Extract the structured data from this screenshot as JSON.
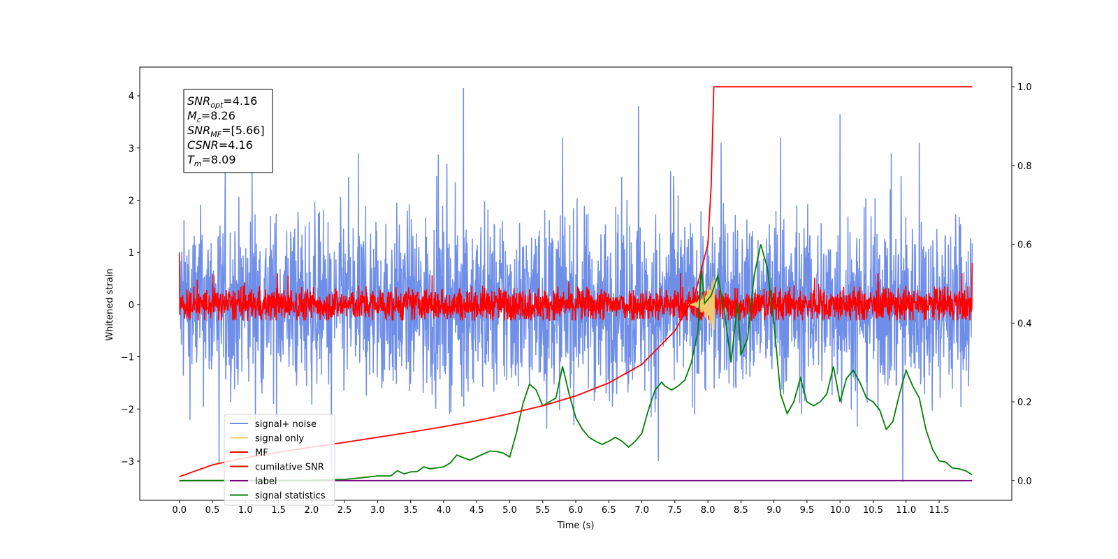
{
  "chart_data": {
    "type": "line",
    "xlabel": "Time (s)",
    "ylabel": "Whitened strain",
    "xlim": [
      -0.6,
      12.6
    ],
    "ylim": [
      -3.75,
      4.55
    ],
    "y2lim": [
      -0.05,
      1.05
    ],
    "x_ticks": [
      0.0,
      0.5,
      1.0,
      1.5,
      2.0,
      2.5,
      3.0,
      3.5,
      4.0,
      4.5,
      5.0,
      5.5,
      6.0,
      6.5,
      7.0,
      7.5,
      8.0,
      8.5,
      9.0,
      9.5,
      10.0,
      10.5,
      11.0,
      11.5
    ],
    "x_tick_labels": [
      "0.0",
      "0.5",
      "1.0",
      "1.5",
      "2.0",
      "2.5",
      "3.0",
      "3.5",
      "4.0",
      "4.5",
      "5.0",
      "5.5",
      "6.0",
      "6.5",
      "7.0",
      "7.5",
      "8.0",
      "8.5",
      "9.0",
      "9.5",
      "10.0",
      "10.5",
      "11.0",
      "11.5"
    ],
    "y_ticks": [
      -3,
      -2,
      -1,
      0,
      1,
      2,
      3,
      4
    ],
    "y_tick_labels": [
      "−3",
      "−2",
      "−1",
      "0",
      "1",
      "2",
      "3",
      "4"
    ],
    "y2_ticks": [
      0.0,
      0.2,
      0.4,
      0.6,
      0.8,
      1.0
    ],
    "y2_tick_labels": [
      "0.0",
      "0.2",
      "0.4",
      "0.6",
      "0.8",
      "1.0"
    ],
    "annotation": {
      "lines": [
        {
          "base": "SNR",
          "sub": "opt",
          "value": "=4.16"
        },
        {
          "base": "M",
          "sub": "c",
          "value": "=8.26"
        },
        {
          "base": "SNR",
          "sub": "MF",
          "value": "=[5.66]"
        },
        {
          "base": "CSNR",
          "sub": "",
          "value": "=4.16"
        },
        {
          "base": "T",
          "sub": "m",
          "value": "=8.09"
        }
      ]
    },
    "series": [
      {
        "name": "signal+ noise",
        "axis": "left",
        "color": "#6f8ee8",
        "description": "dense noisy strain, roughly symmetric about 0 with amplitude ~1.2, spikes to about +/-3",
        "t_range": [
          0.0,
          12.0
        ],
        "spikes": [
          {
            "x": 4.3,
            "y": 4.15
          },
          {
            "x": 6.95,
            "y": 3.8
          },
          {
            "x": 10.0,
            "y": 3.65
          },
          {
            "x": 1.1,
            "y": 2.7
          },
          {
            "x": 5.8,
            "y": 3.2
          },
          {
            "x": 8.2,
            "y": 3.1
          },
          {
            "x": 9.1,
            "y": 3.2
          },
          {
            "x": 11.2,
            "y": 3.1
          },
          {
            "x": 0.6,
            "y": -3.05
          },
          {
            "x": 10.95,
            "y": -3.4
          },
          {
            "x": 2.3,
            "y": -3.2
          },
          {
            "x": 7.25,
            "y": -3.0
          }
        ]
      },
      {
        "name": "signal only",
        "axis": "left",
        "color": "#f5c971",
        "t_range": [
          7.7,
          8.1
        ],
        "peak": 0.6
      },
      {
        "name": "MF",
        "axis": "left",
        "color": "#ff0000",
        "description": "matched filter output, noisy band about 0 with amplitude ~0.25, edge spikes at t=0 (+1.0) and t=12 (+0.8)",
        "t_range": [
          0.0,
          12.0
        ]
      },
      {
        "name": "cumilative SNR",
        "axis": "right",
        "color": "#ff0000",
        "points": [
          [
            0.0,
            0.01
          ],
          [
            0.5,
            0.04
          ],
          [
            1.0,
            0.058
          ],
          [
            1.5,
            0.072
          ],
          [
            2.0,
            0.085
          ],
          [
            2.5,
            0.097
          ],
          [
            3.0,
            0.11
          ],
          [
            3.5,
            0.123
          ],
          [
            4.0,
            0.137
          ],
          [
            4.5,
            0.152
          ],
          [
            5.0,
            0.17
          ],
          [
            5.5,
            0.19
          ],
          [
            6.0,
            0.215
          ],
          [
            6.5,
            0.248
          ],
          [
            7.0,
            0.295
          ],
          [
            7.5,
            0.38
          ],
          [
            7.8,
            0.47
          ],
          [
            8.0,
            0.6
          ],
          [
            8.05,
            0.75
          ],
          [
            8.09,
            1.0
          ],
          [
            12.0,
            1.0
          ]
        ]
      },
      {
        "name": "label",
        "axis": "right",
        "color": "#7b007b",
        "points": [
          [
            0.0,
            0.0
          ],
          [
            12.0,
            0.0
          ]
        ]
      },
      {
        "name": "signal statistics",
        "axis": "right",
        "color": "#008000",
        "points": [
          [
            0.0,
            0.0
          ],
          [
            2.0,
            0.001
          ],
          [
            2.5,
            0.003
          ],
          [
            2.8,
            0.008
          ],
          [
            3.0,
            0.012
          ],
          [
            3.2,
            0.012
          ],
          [
            3.3,
            0.025
          ],
          [
            3.4,
            0.017
          ],
          [
            3.5,
            0.022
          ],
          [
            3.6,
            0.023
          ],
          [
            3.7,
            0.035
          ],
          [
            3.8,
            0.03
          ],
          [
            4.0,
            0.035
          ],
          [
            4.1,
            0.045
          ],
          [
            4.2,
            0.065
          ],
          [
            4.3,
            0.058
          ],
          [
            4.4,
            0.052
          ],
          [
            4.5,
            0.06
          ],
          [
            4.7,
            0.075
          ],
          [
            4.8,
            0.074
          ],
          [
            4.9,
            0.07
          ],
          [
            5.0,
            0.06
          ],
          [
            5.1,
            0.12
          ],
          [
            5.2,
            0.195
          ],
          [
            5.3,
            0.245
          ],
          [
            5.4,
            0.23
          ],
          [
            5.5,
            0.19
          ],
          [
            5.6,
            0.2
          ],
          [
            5.7,
            0.21
          ],
          [
            5.8,
            0.29
          ],
          [
            5.9,
            0.22
          ],
          [
            6.0,
            0.16
          ],
          [
            6.1,
            0.13
          ],
          [
            6.2,
            0.11
          ],
          [
            6.3,
            0.1
          ],
          [
            6.4,
            0.092
          ],
          [
            6.5,
            0.1
          ],
          [
            6.6,
            0.11
          ],
          [
            6.7,
            0.1
          ],
          [
            6.8,
            0.085
          ],
          [
            6.9,
            0.1
          ],
          [
            7.0,
            0.12
          ],
          [
            7.1,
            0.18
          ],
          [
            7.2,
            0.23
          ],
          [
            7.3,
            0.25
          ],
          [
            7.35,
            0.24
          ],
          [
            7.45,
            0.23
          ],
          [
            7.55,
            0.24
          ],
          [
            7.65,
            0.255
          ],
          [
            7.75,
            0.3
          ],
          [
            7.85,
            0.38
          ],
          [
            7.9,
            0.54
          ],
          [
            7.95,
            0.45
          ],
          [
            8.05,
            0.47
          ],
          [
            8.15,
            0.52
          ],
          [
            8.25,
            0.43
          ],
          [
            8.35,
            0.3
          ],
          [
            8.45,
            0.45
          ],
          [
            8.5,
            0.32
          ],
          [
            8.6,
            0.36
          ],
          [
            8.7,
            0.52
          ],
          [
            8.8,
            0.6
          ],
          [
            8.9,
            0.54
          ],
          [
            9.0,
            0.4
          ],
          [
            9.1,
            0.22
          ],
          [
            9.2,
            0.17
          ],
          [
            9.3,
            0.2
          ],
          [
            9.4,
            0.26
          ],
          [
            9.5,
            0.2
          ],
          [
            9.6,
            0.19
          ],
          [
            9.7,
            0.2
          ],
          [
            9.8,
            0.22
          ],
          [
            9.9,
            0.29
          ],
          [
            10.0,
            0.2
          ],
          [
            10.1,
            0.26
          ],
          [
            10.2,
            0.28
          ],
          [
            10.3,
            0.25
          ],
          [
            10.4,
            0.21
          ],
          [
            10.5,
            0.2
          ],
          [
            10.6,
            0.18
          ],
          [
            10.7,
            0.13
          ],
          [
            10.8,
            0.15
          ],
          [
            10.9,
            0.22
          ],
          [
            11.0,
            0.28
          ],
          [
            11.1,
            0.24
          ],
          [
            11.2,
            0.21
          ],
          [
            11.3,
            0.13
          ],
          [
            11.4,
            0.08
          ],
          [
            11.5,
            0.05
          ],
          [
            11.6,
            0.047
          ],
          [
            11.7,
            0.032
          ],
          [
            11.8,
            0.03
          ],
          [
            11.9,
            0.025
          ],
          [
            12.0,
            0.015
          ]
        ]
      }
    ],
    "legend_position": "lower-left"
  }
}
